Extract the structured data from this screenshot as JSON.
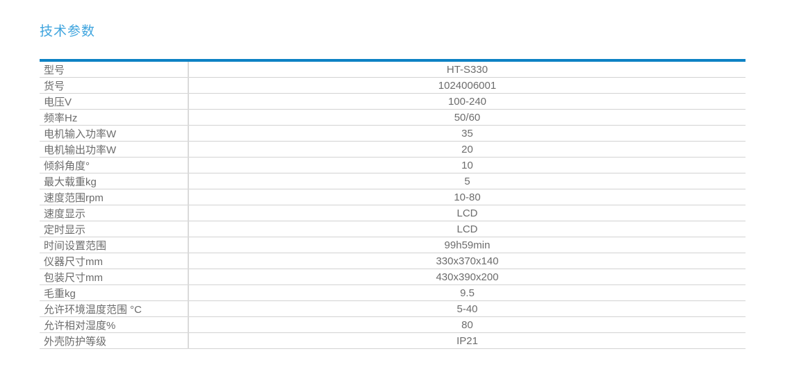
{
  "page": {
    "title": "技术参数"
  },
  "colors": {
    "title_blue": "#3ea4de",
    "table_top_border_blue": "#0d82c4",
    "row_separator_gray": "#d2d2d2",
    "text_gray": "#6c6c6c",
    "background": "#ffffff"
  },
  "table": {
    "rows": [
      {
        "label": "型号",
        "value": "HT-S330"
      },
      {
        "label": "货号",
        "value": "1024006001"
      },
      {
        "label": "电压V",
        "value": "100-240"
      },
      {
        "label": "频率Hz",
        "value": "50/60"
      },
      {
        "label": "电机输入功率W",
        "value": "35"
      },
      {
        "label": "电机输出功率W",
        "value": "20"
      },
      {
        "label": "倾斜角度°",
        "value": "10"
      },
      {
        "label": "最大载重kg",
        "value": "5"
      },
      {
        "label": "速度范围rpm",
        "value": "10-80"
      },
      {
        "label": "速度显示",
        "value": "LCD"
      },
      {
        "label": "定时显示",
        "value": "LCD"
      },
      {
        "label": "时间设置范围",
        "value": "99h59min"
      },
      {
        "label": "仪器尺寸mm",
        "value": "330x370x140"
      },
      {
        "label": "包装尺寸mm",
        "value": "430x390x200"
      },
      {
        "label": "毛重kg",
        "value": "9.5"
      },
      {
        "label": "允许环境温度范围 °C",
        "value": "5-40"
      },
      {
        "label": "允许相对湿度%",
        "value": "80"
      },
      {
        "label": "外壳防护等级",
        "value": "IP21"
      }
    ]
  }
}
